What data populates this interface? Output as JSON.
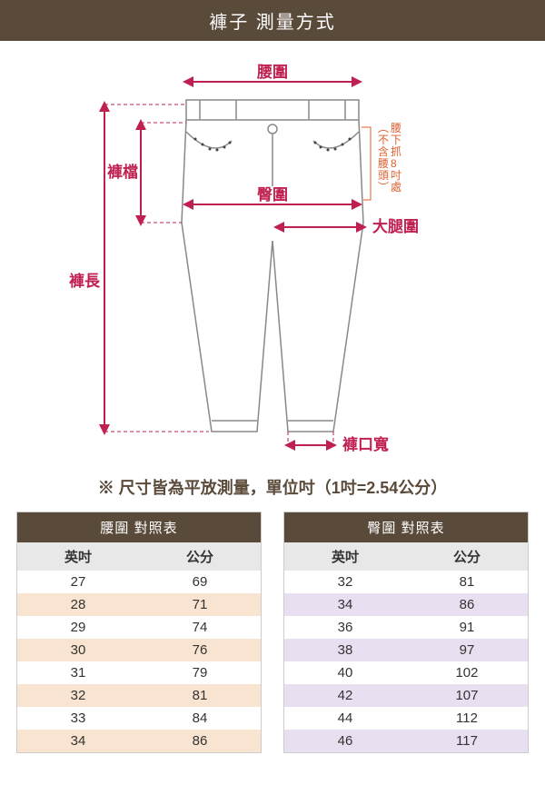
{
  "header": {
    "title": "褲子 測量方式"
  },
  "diagram": {
    "labels": {
      "waist": "腰圍",
      "rise": "褲檔",
      "hip": "臀圍",
      "thigh": "大腿圍",
      "length": "褲長",
      "hem": "褲口寬",
      "side_note": "（不含腰頭）\n腰下抓8吋處"
    },
    "colors": {
      "measure": "#c02050",
      "outline": "#888888",
      "arrow": "#c02050",
      "dash": "#c02050",
      "side_note": "#e06030"
    }
  },
  "note": {
    "text": "※ 尺寸皆為平放測量，單位吋（1吋=2.54公分）"
  },
  "waist_table": {
    "title": "腰圍 對照表",
    "col1": "英吋",
    "col2": "公分",
    "rows": [
      {
        "in": "27",
        "cm": "69"
      },
      {
        "in": "28",
        "cm": "71"
      },
      {
        "in": "29",
        "cm": "74"
      },
      {
        "in": "30",
        "cm": "76"
      },
      {
        "in": "31",
        "cm": "79"
      },
      {
        "in": "32",
        "cm": "81"
      },
      {
        "in": "33",
        "cm": "84"
      },
      {
        "in": "34",
        "cm": "86"
      }
    ],
    "alt_color": "#f8e4d0"
  },
  "hip_table": {
    "title": "臀圍 對照表",
    "col1": "英吋",
    "col2": "公分",
    "rows": [
      {
        "in": "32",
        "cm": "81"
      },
      {
        "in": "34",
        "cm": "86"
      },
      {
        "in": "36",
        "cm": "91"
      },
      {
        "in": "38",
        "cm": "97"
      },
      {
        "in": "40",
        "cm": "102"
      },
      {
        "in": "42",
        "cm": "107"
      },
      {
        "in": "44",
        "cm": "112"
      },
      {
        "in": "46",
        "cm": "117"
      }
    ],
    "alt_color": "#e8e0f0"
  }
}
